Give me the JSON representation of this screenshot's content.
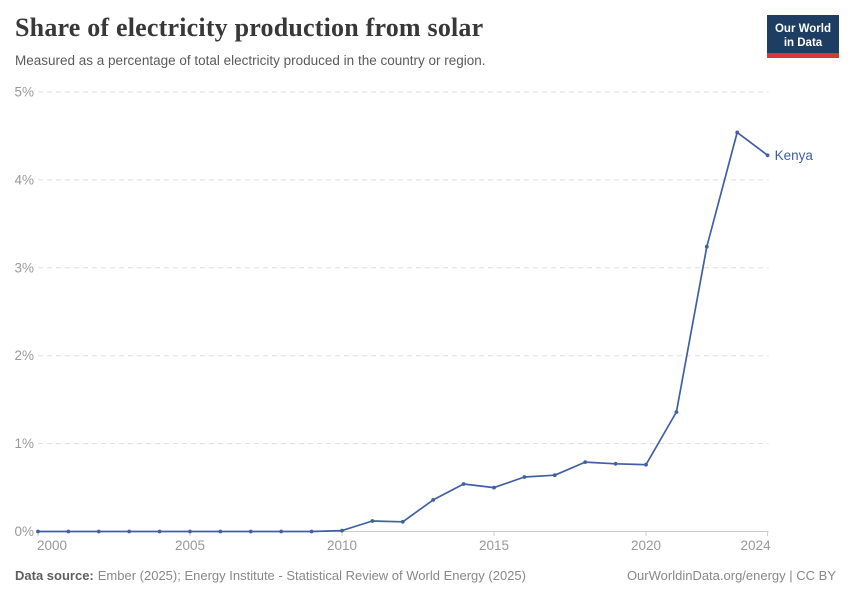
{
  "header": {
    "title": "Share of electricity production from solar",
    "subtitle": "Measured as a percentage of total electricity produced in the country or region.",
    "logo": {
      "line1": "Our World",
      "line2": "in Data",
      "bg_color": "#1d3d63",
      "bar_color": "#d73a36"
    }
  },
  "chart_data": {
    "type": "line",
    "title": "Share of electricity production from solar",
    "xlabel": "",
    "ylabel": "",
    "unit": "%",
    "x": [
      2000,
      2001,
      2002,
      2003,
      2004,
      2005,
      2006,
      2007,
      2008,
      2009,
      2010,
      2011,
      2012,
      2013,
      2014,
      2015,
      2016,
      2017,
      2018,
      2019,
      2020,
      2021,
      2022,
      2023,
      2024
    ],
    "series": [
      {
        "name": "Kenya",
        "color": "#4060a2",
        "values": [
          0,
          0,
          0,
          0,
          0,
          0,
          0,
          0,
          0,
          0,
          0.01,
          0.12,
          0.11,
          0.36,
          0.54,
          0.5,
          0.62,
          0.64,
          0.79,
          0.77,
          0.76,
          1.36,
          3.24,
          4.54,
          4.28
        ]
      }
    ],
    "xlim": [
      2000,
      2024
    ],
    "ylim": [
      0,
      5
    ],
    "yticks": [
      "0%",
      "1%",
      "2%",
      "3%",
      "4%",
      "5%"
    ],
    "xticks": [
      2000,
      2005,
      2010,
      2015,
      2020,
      2024
    ],
    "grid": "horizontal-dashed",
    "legend_position": "end-of-line",
    "end_label": "Kenya",
    "grid_color": "#dddddd",
    "axis_color": "#cccccc",
    "tick_label_color": "#999999"
  },
  "footer": {
    "datasource_label": "Data source:",
    "datasource_text": "Ember (2025); Energy Institute - Statistical Review of World Energy (2025)",
    "credit": "OurWorldinData.org/energy | CC BY"
  }
}
